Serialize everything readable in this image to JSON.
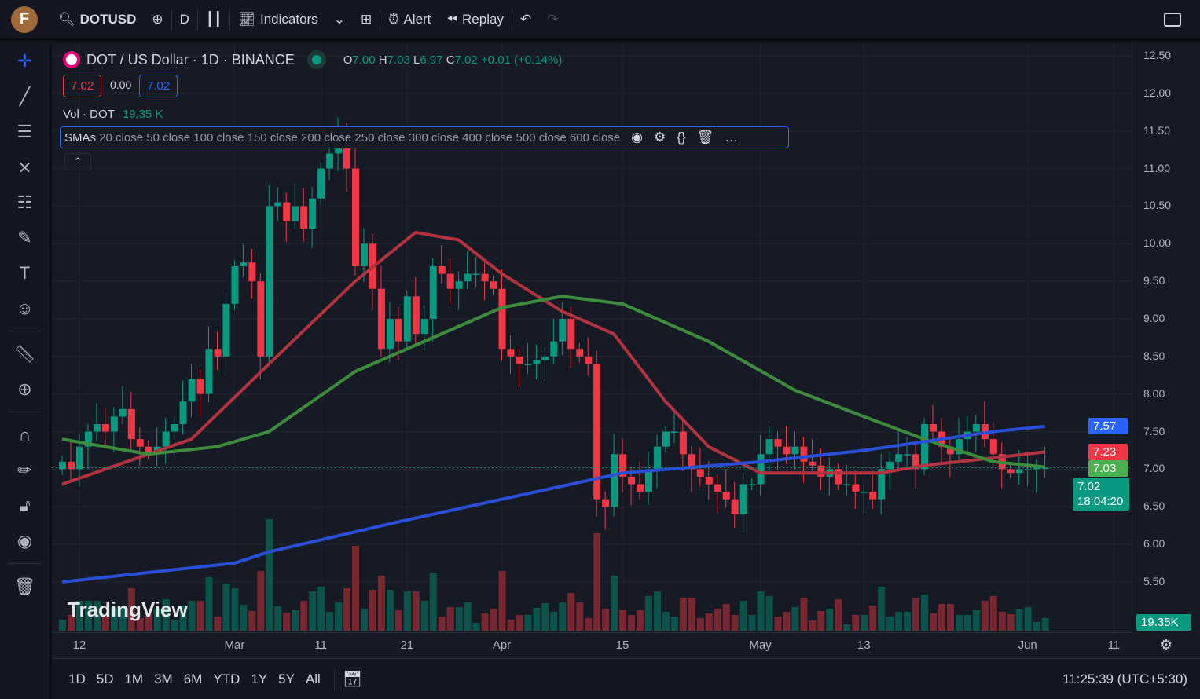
{
  "toolbar": {
    "avatar": "F",
    "symbol": "DOTUSD",
    "interval": "D",
    "indicators": "Indicators",
    "alert": "Alert",
    "replay": "Replay"
  },
  "legend": {
    "title": "DOT / US Dollar · 1D · BINANCE",
    "o_label": "O",
    "o": "7.00",
    "h_label": "H",
    "h": "7.03",
    "l_label": "L",
    "l": "6.97",
    "c_label": "C",
    "c": "7.02",
    "change": "+0.01 (+0.14%)",
    "sell": "7.02",
    "spread": "0.00",
    "buy": "7.02",
    "vol_label": "Vol · DOT",
    "vol_value": "19.35 K",
    "smas_name": "SMAs",
    "smas_args": "20 close 50 close 100 close 150 close 200 close 250 close 300 close 400 close 500 close 600 close"
  },
  "price_axis": {
    "ticks": [
      "12.50",
      "12.00",
      "11.50",
      "11.00",
      "10.50",
      "10.00",
      "9.50",
      "9.00",
      "8.50",
      "8.00",
      "7.50",
      "7.00",
      "6.50",
      "6.00",
      "5.50"
    ],
    "tags": [
      {
        "value": "7.57",
        "color": "#2962ff"
      },
      {
        "value": "7.23",
        "color": "#f23645"
      },
      {
        "value": "7.03",
        "color": "#4caf50"
      }
    ],
    "last_price": "7.02",
    "countdown": "18:04:20",
    "volume_tag": "19.35K"
  },
  "time_axis": {
    "ticks": [
      [
        "12",
        "02-12"
      ],
      [
        "Mar",
        "03-01"
      ],
      [
        "11",
        "03-11"
      ],
      [
        "21",
        "03-21"
      ],
      [
        "Apr",
        "04-01"
      ],
      [
        "15",
        "04-15"
      ],
      [
        "May",
        "05-01"
      ],
      [
        "13",
        "05-13"
      ],
      [
        "Jun",
        "06-01"
      ],
      [
        "11",
        "06-11"
      ]
    ]
  },
  "watermark": "TradingView",
  "bottom": {
    "ranges": [
      "1D",
      "5D",
      "1M",
      "3M",
      "6M",
      "YTD",
      "1Y",
      "5Y",
      "All"
    ],
    "clock": "11:25:39 (UTC+5:30)"
  },
  "colors": {
    "up": "#089981",
    "down": "#f23645",
    "sma_red": "#b2323f",
    "sma_green": "#3d8b3d",
    "sma_blue": "#2a4fd6"
  },
  "chart_data": {
    "type": "candlestick",
    "open_first": 7.0,
    "closes": [
      [
        "02-10",
        7.1
      ],
      [
        "02-11",
        7.0
      ],
      [
        "02-12",
        7.3
      ],
      [
        "02-13",
        7.5
      ],
      [
        "02-14",
        7.6
      ],
      [
        "02-15",
        7.5
      ],
      [
        "02-16",
        7.7
      ],
      [
        "02-17",
        7.8
      ],
      [
        "02-18",
        7.4
      ],
      [
        "02-19",
        7.3
      ],
      [
        "02-20",
        7.2
      ],
      [
        "02-21",
        7.3
      ],
      [
        "02-22",
        7.5
      ],
      [
        "02-23",
        7.6
      ],
      [
        "02-24",
        7.9
      ],
      [
        "02-25",
        8.2
      ],
      [
        "02-26",
        8.0
      ],
      [
        "02-27",
        8.6
      ],
      [
        "02-28",
        8.5
      ],
      [
        "02-29",
        9.2
      ],
      [
        "03-01",
        9.7
      ],
      [
        "03-02",
        9.75
      ],
      [
        "03-03",
        9.5
      ],
      [
        "03-04",
        8.5
      ],
      [
        "03-05",
        10.5
      ],
      [
        "03-06",
        10.55
      ],
      [
        "03-07",
        10.3
      ],
      [
        "03-08",
        10.5
      ],
      [
        "03-09",
        10.2
      ],
      [
        "03-10",
        10.6
      ],
      [
        "03-11",
        11.0
      ],
      [
        "03-12",
        11.2
      ],
      [
        "03-13",
        11.5
      ],
      [
        "03-14",
        11.0
      ],
      [
        "03-15",
        9.7
      ],
      [
        "03-16",
        10.0
      ],
      [
        "03-17",
        9.4
      ],
      [
        "03-18",
        8.6
      ],
      [
        "03-19",
        9.0
      ],
      [
        "03-20",
        8.7
      ],
      [
        "03-21",
        9.3
      ],
      [
        "03-22",
        8.8
      ],
      [
        "03-23",
        9.0
      ],
      [
        "03-24",
        9.7
      ],
      [
        "03-25",
        9.6
      ],
      [
        "03-26",
        9.4
      ],
      [
        "03-27",
        9.5
      ],
      [
        "03-28",
        9.6
      ],
      [
        "03-29",
        9.6
      ],
      [
        "03-30",
        9.5
      ],
      [
        "03-31",
        9.4
      ],
      [
        "04-01",
        8.6
      ],
      [
        "04-02",
        8.5
      ],
      [
        "04-03",
        8.4
      ],
      [
        "04-04",
        8.4
      ],
      [
        "04-05",
        8.45
      ],
      [
        "04-06",
        8.5
      ],
      [
        "04-07",
        8.7
      ],
      [
        "04-08",
        9.0
      ],
      [
        "04-09",
        8.6
      ],
      [
        "04-10",
        8.5
      ],
      [
        "04-11",
        8.4
      ],
      [
        "04-12",
        6.6
      ],
      [
        "04-13",
        6.5
      ],
      [
        "04-14",
        7.2
      ],
      [
        "04-15",
        6.9
      ],
      [
        "04-16",
        6.8
      ],
      [
        "04-17",
        6.7
      ],
      [
        "04-18",
        7.0
      ],
      [
        "04-19",
        7.3
      ],
      [
        "04-20",
        7.5
      ],
      [
        "04-21",
        7.5
      ],
      [
        "04-22",
        7.2
      ],
      [
        "04-23",
        7.0
      ],
      [
        "04-24",
        6.9
      ],
      [
        "04-25",
        6.8
      ],
      [
        "04-26",
        6.7
      ],
      [
        "04-27",
        6.6
      ],
      [
        "04-28",
        6.4
      ],
      [
        "04-29",
        6.8
      ],
      [
        "04-30",
        6.8
      ],
      [
        "05-01",
        7.2
      ],
      [
        "05-02",
        7.4
      ],
      [
        "05-03",
        7.3
      ],
      [
        "05-04",
        7.2
      ],
      [
        "05-05",
        7.3
      ],
      [
        "05-06",
        7.1
      ],
      [
        "05-07",
        7.05
      ],
      [
        "05-08",
        6.9
      ],
      [
        "05-09",
        7.0
      ],
      [
        "05-10",
        6.8
      ],
      [
        "05-11",
        6.8
      ],
      [
        "05-12",
        6.7
      ],
      [
        "05-13",
        6.7
      ],
      [
        "05-14",
        6.6
      ],
      [
        "05-15",
        7.0
      ],
      [
        "05-16",
        7.1
      ],
      [
        "05-17",
        7.2
      ],
      [
        "05-18",
        7.2
      ],
      [
        "05-19",
        7.0
      ],
      [
        "05-20",
        7.6
      ],
      [
        "05-21",
        7.5
      ],
      [
        "05-22",
        7.3
      ],
      [
        "05-23",
        7.2
      ],
      [
        "05-24",
        7.4
      ],
      [
        "05-25",
        7.5
      ],
      [
        "05-26",
        7.6
      ],
      [
        "05-27",
        7.4
      ],
      [
        "05-28",
        7.2
      ],
      [
        "05-29",
        7.0
      ],
      [
        "05-30",
        6.95
      ],
      [
        "05-31",
        7.0
      ],
      [
        "06-01",
        7.0
      ],
      [
        "06-02",
        7.02
      ],
      [
        "06-03",
        7.02
      ]
    ],
    "lines": [
      {
        "color": "#b2323f",
        "points": [
          [
            "02-10",
            6.8
          ],
          [
            "02-15",
            7.0
          ],
          [
            "02-25",
            7.4
          ],
          [
            "03-05",
            8.4
          ],
          [
            "03-15",
            9.5
          ],
          [
            "03-22",
            10.15
          ],
          [
            "03-27",
            10.05
          ],
          [
            "04-01",
            9.6
          ],
          [
            "04-08",
            9.1
          ],
          [
            "04-14",
            8.8
          ],
          [
            "04-20",
            7.9
          ],
          [
            "04-25",
            7.3
          ],
          [
            "05-01",
            6.95
          ],
          [
            "05-10",
            6.95
          ],
          [
            "05-15",
            6.95
          ],
          [
            "05-20",
            7.05
          ],
          [
            "05-28",
            7.15
          ],
          [
            "06-03",
            7.23
          ]
        ]
      },
      {
        "color": "#3d8b3d",
        "points": [
          [
            "02-10",
            7.4
          ],
          [
            "02-20",
            7.2
          ],
          [
            "02-28",
            7.3
          ],
          [
            "03-05",
            7.5
          ],
          [
            "03-15",
            8.3
          ],
          [
            "03-25",
            8.8
          ],
          [
            "04-01",
            9.15
          ],
          [
            "04-08",
            9.3
          ],
          [
            "04-15",
            9.2
          ],
          [
            "04-25",
            8.7
          ],
          [
            "05-05",
            8.05
          ],
          [
            "05-13",
            7.7
          ],
          [
            "05-20",
            7.4
          ],
          [
            "05-28",
            7.1
          ],
          [
            "06-03",
            7.03
          ]
        ]
      },
      {
        "color": "#2a4fd6",
        "points": [
          [
            "02-10",
            5.5
          ],
          [
            "03-01",
            5.75
          ],
          [
            "03-05",
            5.9
          ],
          [
            "03-20",
            6.3
          ],
          [
            "04-01",
            6.6
          ],
          [
            "04-15",
            6.95
          ],
          [
            "05-01",
            7.1
          ],
          [
            "05-13",
            7.25
          ],
          [
            "05-28",
            7.5
          ],
          [
            "06-03",
            7.57
          ]
        ]
      }
    ],
    "ylim": [
      5.5,
      12.5
    ]
  }
}
